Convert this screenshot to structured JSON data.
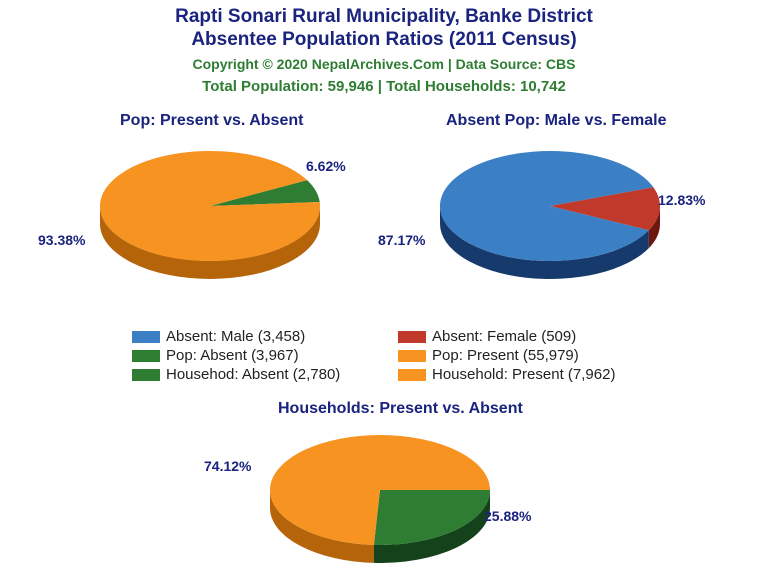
{
  "title_line1": "Rapti Sonari Rural Municipality, Banke District",
  "title_line2": "Absentee Population Ratios (2011 Census)",
  "copyright": "Copyright © 2020 NepalArchives.Com | Data Source: CBS",
  "totals": "Total Population: 59,946 | Total Households: 10,742",
  "charts": {
    "pop": {
      "title": "Pop: Present vs. Absent",
      "slices": [
        {
          "label": "93.38%",
          "value": 93.38,
          "color": "#f79321",
          "side": "#b5640a"
        },
        {
          "label": "6.62%",
          "value": 6.62,
          "color": "#2e7d32",
          "side": "#14421a"
        }
      ]
    },
    "gender": {
      "title": "Absent Pop: Male vs. Female",
      "slices": [
        {
          "label": "87.17%",
          "value": 87.17,
          "color": "#3b7fc4",
          "side": "#153a6b"
        },
        {
          "label": "12.83%",
          "value": 12.83,
          "color": "#c0392b",
          "side": "#6e1710"
        }
      ]
    },
    "hh": {
      "title": "Households: Present vs. Absent",
      "slices": [
        {
          "label": "74.12%",
          "value": 74.12,
          "color": "#f79321",
          "side": "#b5640a"
        },
        {
          "label": "25.88%",
          "value": 25.88,
          "color": "#2e7d32",
          "side": "#14421a"
        }
      ]
    }
  },
  "legend": [
    {
      "color": "#3b7fc4",
      "text": "Absent: Male (3,458)"
    },
    {
      "color": "#c0392b",
      "text": "Absent: Female (509)"
    },
    {
      "color": "#2e7d32",
      "text": "Pop: Absent (3,967)"
    },
    {
      "color": "#f79321",
      "text": "Pop: Present (55,979)"
    },
    {
      "color": "#2e7d32",
      "text": "Househod: Absent (2,780)"
    },
    {
      "color": "#f79321",
      "text": "Household: Present (7,962)"
    }
  ]
}
